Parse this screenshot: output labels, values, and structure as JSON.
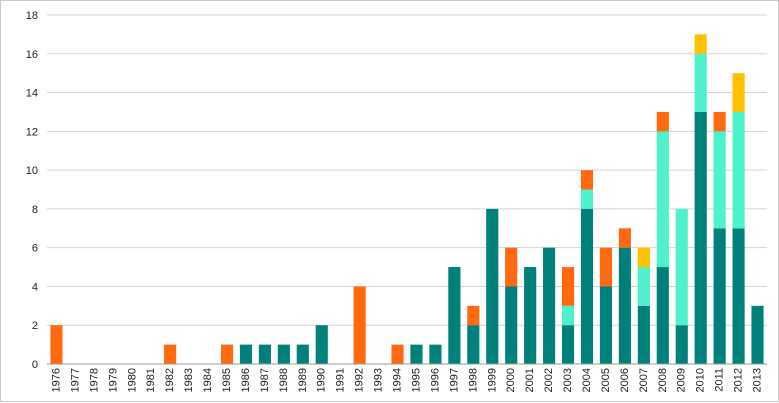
{
  "chart_data": {
    "type": "bar",
    "stacked": true,
    "title": "",
    "xlabel": "",
    "ylabel": "",
    "ylim": [
      0,
      18
    ],
    "yticks": [
      0,
      2,
      4,
      6,
      8,
      10,
      12,
      14,
      16,
      18
    ],
    "grid": true,
    "legend": "none",
    "categories": [
      "1976",
      "1977",
      "1978",
      "1979",
      "1980",
      "1981",
      "1982",
      "1983",
      "1984",
      "1985",
      "1986",
      "1987",
      "1988",
      "1989",
      "1990",
      "1991",
      "1992",
      "1993",
      "1994",
      "1995",
      "1996",
      "1997",
      "1998",
      "1999",
      "2000",
      "2001",
      "2002",
      "2003",
      "2004",
      "2005",
      "2006",
      "2007",
      "2008",
      "2009",
      "2010",
      "2011",
      "2012",
      "2013"
    ],
    "series": [
      {
        "color": "#00807a",
        "values": [
          0,
          0,
          0,
          0,
          0,
          0,
          0,
          0,
          0,
          0,
          1,
          1,
          1,
          1,
          2,
          0,
          0,
          0,
          0,
          1,
          1,
          5,
          2,
          8,
          4,
          5,
          6,
          2,
          8,
          4,
          6,
          3,
          5,
          2,
          13,
          7,
          7,
          3
        ]
      },
      {
        "color": "#4ff0cc",
        "values": [
          0,
          0,
          0,
          0,
          0,
          0,
          0,
          0,
          0,
          0,
          0,
          0,
          0,
          0,
          0,
          0,
          0,
          0,
          0,
          0,
          0,
          0,
          0,
          0,
          0,
          0,
          0,
          1,
          1,
          0,
          0,
          2,
          7,
          6,
          3,
          5,
          6,
          0
        ]
      },
      {
        "color": "#ff6a10",
        "values": [
          2,
          0,
          0,
          0,
          0,
          0,
          1,
          0,
          0,
          1,
          0,
          0,
          0,
          0,
          0,
          0,
          4,
          0,
          1,
          0,
          0,
          0,
          1,
          0,
          2,
          0,
          0,
          2,
          1,
          2,
          1,
          0,
          1,
          0,
          0,
          1,
          0,
          0
        ]
      },
      {
        "color": "#ffc000",
        "values": [
          0,
          0,
          0,
          0,
          0,
          0,
          0,
          0,
          0,
          0,
          0,
          0,
          0,
          0,
          0,
          0,
          0,
          0,
          0,
          0,
          0,
          0,
          0,
          0,
          0,
          0,
          0,
          0,
          0,
          0,
          0,
          1,
          0,
          0,
          1,
          0,
          2,
          0
        ]
      }
    ]
  }
}
